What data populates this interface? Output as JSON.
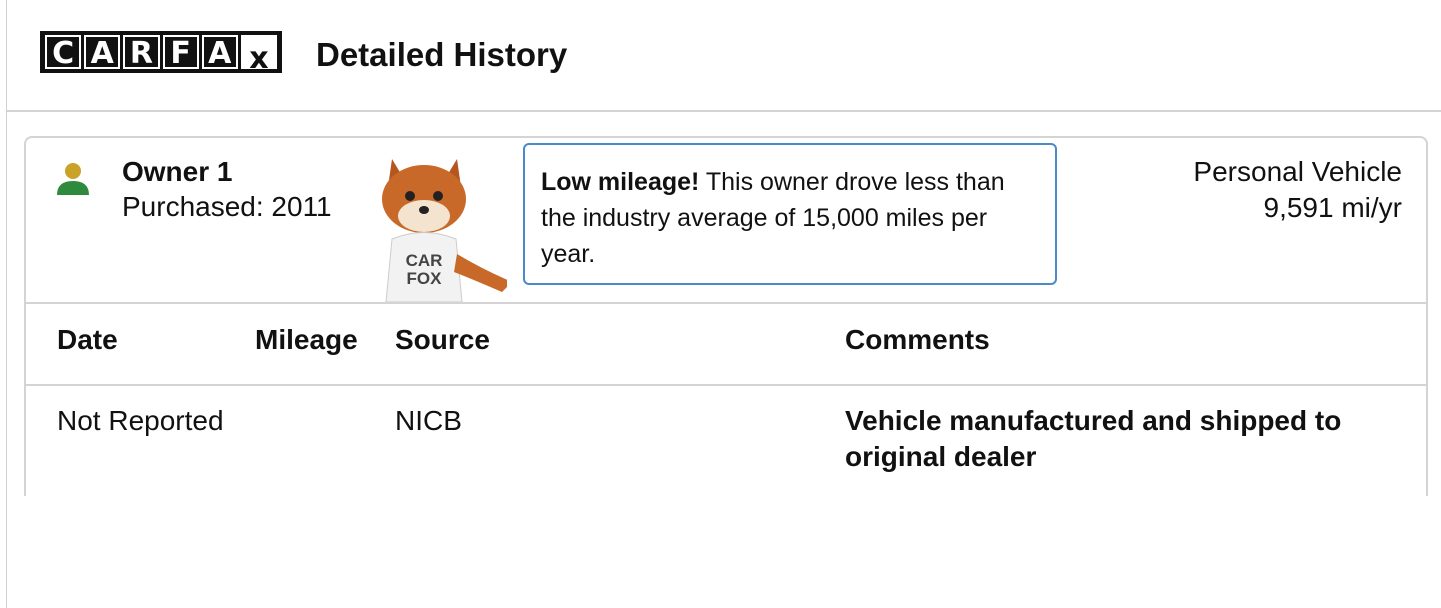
{
  "header": {
    "logo_letters": [
      "C",
      "A",
      "R",
      "F",
      "A",
      "x"
    ],
    "title": "Detailed History"
  },
  "owner": {
    "name": "Owner 1",
    "purchased": "Purchased: 2011",
    "mascot_shirt": [
      "CAR",
      "FOX"
    ],
    "callout": {
      "highlight": "Low mileage!",
      "text": "This owner drove less than the industry average of 15,000 miles per year."
    },
    "vehicle_type": "Personal Vehicle",
    "mileage": "9,591 mi/yr"
  },
  "table": {
    "headers": [
      "Date",
      "Mileage",
      "Source",
      "Comments"
    ],
    "rows": [
      [
        "Not Reported",
        null,
        "NICB",
        "Vehicle manufactured and shipped to original dealer"
      ]
    ]
  }
}
